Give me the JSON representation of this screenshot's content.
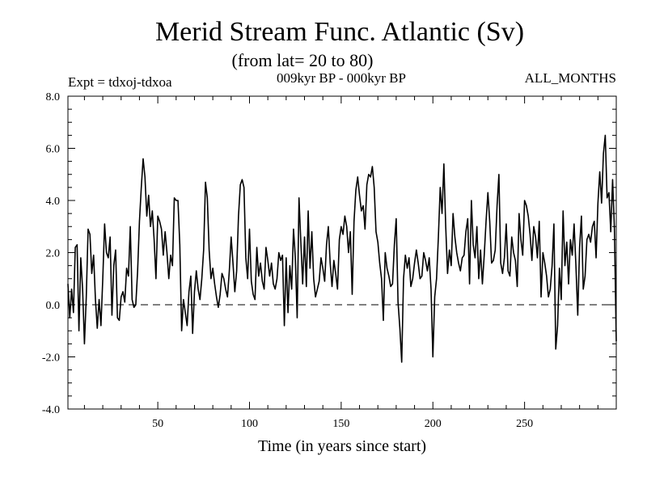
{
  "chart_data": {
    "type": "line",
    "title": "Merid Stream Func. Atlantic (Sv)",
    "subtitle": "(from lat= 20 to 80)",
    "experiment": "Expt = tdxoj-tdxoa",
    "period": "009kyr BP - 000kyr BP",
    "months": "ALL_MONTHS",
    "xlabel": "Time (in years since start)",
    "ylabel": "",
    "xlim": [
      1,
      300
    ],
    "ylim": [
      -4.0,
      8.0
    ],
    "xticks": [
      50,
      100,
      150,
      200,
      250
    ],
    "yticks": [
      -4.0,
      -2.0,
      0.0,
      2.0,
      4.0,
      6.0,
      8.0
    ],
    "xtick_labels": [
      "50",
      "100",
      "150",
      "200",
      "250"
    ],
    "ytick_labels": [
      "-4.0",
      "-2.0",
      "0.0",
      "2.0",
      "4.0",
      "6.0",
      "8.0"
    ],
    "reference_line": {
      "y": 0.0,
      "style": "dashed"
    },
    "grid": false,
    "series": [
      {
        "values": [
          0.8,
          -0.5,
          0.6,
          -0.3,
          2.2,
          2.3,
          -1.0,
          1.8,
          0.6,
          -1.5,
          0.3,
          2.9,
          2.7,
          1.2,
          1.9,
          0.2,
          -0.9,
          0.2,
          -0.8,
          1.0,
          3.1,
          2.0,
          1.8,
          2.6,
          -0.4,
          1.5,
          2.1,
          -0.5,
          -0.6,
          0.3,
          0.5,
          0.1,
          1.4,
          1.1,
          3.0,
          0.2,
          -0.1,
          0.0,
          1.3,
          3.2,
          4.5,
          5.6,
          4.9,
          3.4,
          4.2,
          3.0,
          3.6,
          2.5,
          1.0,
          3.4,
          3.2,
          2.9,
          1.9,
          2.8,
          2.0,
          1.0,
          1.9,
          1.5,
          4.1,
          4.0,
          4.0,
          2.3,
          -1.0,
          0.2,
          -0.3,
          -0.8,
          0.5,
          1.1,
          -1.1,
          0.5,
          1.3,
          0.6,
          0.2,
          1.0,
          2.1,
          4.7,
          4.1,
          2.1,
          1.0,
          1.4,
          0.8,
          0.3,
          -0.1,
          0.4,
          1.2,
          1.0,
          0.6,
          0.3,
          1.3,
          2.6,
          1.6,
          0.5,
          1.3,
          3.4,
          4.6,
          4.8,
          4.5,
          1.8,
          1.0,
          2.9,
          0.9,
          0.4,
          0.2,
          2.2,
          1.1,
          1.6,
          0.9,
          0.6,
          2.2,
          1.7,
          1.1,
          1.6,
          0.8,
          0.6,
          1.0,
          2.0,
          1.7,
          1.9,
          -0.8,
          1.8,
          -0.3,
          1.5,
          0.6,
          2.9,
          1.8,
          -0.5,
          4.1,
          2.4,
          0.8,
          2.6,
          0.7,
          3.6,
          1.4,
          2.8,
          1.0,
          0.3,
          0.6,
          0.9,
          1.8,
          1.4,
          0.9,
          2.3,
          3.0,
          1.6,
          0.7,
          1.7,
          1.2,
          0.6,
          2.5,
          3.0,
          2.7,
          3.4,
          3.0,
          2.0,
          2.8,
          0.4,
          3.2,
          4.4,
          4.9,
          4.2,
          3.6,
          3.8,
          2.9,
          4.6,
          5.0,
          4.9,
          5.3,
          4.5,
          2.8,
          2.4,
          1.6,
          1.0,
          -0.6,
          2.0,
          1.4,
          1.1,
          0.7,
          0.8,
          2.3,
          3.3,
          0.1,
          -0.9,
          -2.2,
          1.0,
          1.9,
          1.4,
          1.8,
          0.7,
          1.0,
          1.6,
          2.1,
          1.6,
          1.0,
          1.1,
          2.0,
          1.7,
          1.3,
          1.8,
          0.6,
          -2.0,
          0.3,
          1.0,
          2.6,
          4.5,
          3.5,
          5.4,
          3.0,
          1.2,
          2.1,
          1.5,
          3.5,
          2.6,
          2.0,
          1.6,
          1.3,
          1.8,
          1.9,
          2.8,
          3.3,
          0.8,
          4.0,
          2.3,
          1.8,
          3.0,
          1.0,
          2.1,
          0.8,
          1.9,
          3.2,
          4.3,
          3.2,
          1.6,
          1.7,
          2.1,
          3.8,
          5.0,
          1.6,
          1.2,
          1.8,
          3.1,
          1.3,
          1.1,
          2.6,
          2.0,
          1.7,
          0.7,
          3.5,
          2.5,
          1.9,
          4.0,
          3.8,
          3.4,
          2.7,
          1.7,
          3.0,
          2.6,
          1.8,
          3.2,
          0.3,
          2.0,
          1.6,
          1.1,
          0.3,
          0.6,
          1.5,
          3.1,
          -1.7,
          -0.8,
          1.4,
          0.2,
          3.6,
          1.5,
          2.4,
          0.8,
          2.5,
          1.9,
          3.1,
          1.5,
          -0.4,
          2.2,
          3.4,
          0.6,
          1.1,
          2.5,
          2.7,
          2.4,
          3.0,
          3.2,
          1.8,
          3.9,
          5.1,
          3.9,
          5.8,
          6.5,
          4.1,
          4.3,
          2.8,
          4.8,
          2.9,
          -1.4
        ]
      }
    ]
  },
  "colors": {
    "background": "#ffffff",
    "line": "#000000",
    "axis": "#000000"
  }
}
